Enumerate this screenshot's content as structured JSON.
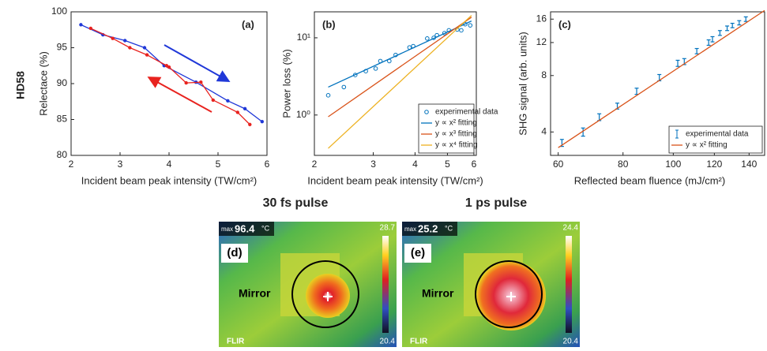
{
  "side_label": "HD58",
  "chart_data": [
    {
      "type": "line",
      "panel_label": "(a)",
      "xlabel": "Incident beam peak intensity (TW/cm²)",
      "ylabel": "Relectace (%)",
      "xlim": [
        2,
        6
      ],
      "ylim": [
        80,
        100
      ],
      "xticks": [
        2,
        3,
        4,
        5,
        6
      ],
      "yticks": [
        80,
        85,
        90,
        95,
        100
      ],
      "series": [
        {
          "color": "#2038d8",
          "x": [
            2.2,
            2.65,
            3.1,
            3.5,
            3.9,
            4.55,
            5.2,
            5.55,
            5.9
          ],
          "values": [
            98.2,
            96.8,
            96.0,
            95.0,
            92.5,
            90.2,
            87.6,
            86.5,
            84.7
          ]
        },
        {
          "color": "#e8231f",
          "x": [
            2.4,
            2.85,
            3.2,
            3.55,
            3.95,
            4.0,
            4.35,
            4.65,
            4.9,
            5.4,
            5.65
          ],
          "values": [
            97.7,
            96.3,
            95.0,
            94.0,
            92.5,
            92.3,
            90.1,
            90.2,
            87.7,
            86.0,
            84.3
          ]
        }
      ]
    },
    {
      "type": "scatter",
      "panel_label": "(b)",
      "xlabel": "Incident beam peak intensity (TW/cm²)",
      "ylabel": "Power loss (%)",
      "xscale": "log",
      "yscale": "log",
      "xlim": [
        2,
        6.1
      ],
      "ylim": [
        0.3,
        21.7
      ],
      "xticks": [
        2,
        3,
        4,
        5,
        6
      ],
      "yticks": [
        {
          "value": 1,
          "label": "10⁰"
        },
        {
          "value": 10,
          "label": "10¹"
        }
      ],
      "legend": "lower right",
      "series": [
        {
          "name": "experimental data",
          "kind": "scatter",
          "color": "#0072bd",
          "x": [
            2.2,
            2.45,
            2.65,
            2.85,
            3.05,
            3.15,
            3.35,
            3.5,
            3.85,
            3.95,
            4.35,
            4.55,
            4.65,
            4.9,
            5.05,
            5.35,
            5.5,
            5.65,
            5.85
          ],
          "values": [
            1.8,
            2.3,
            3.3,
            3.7,
            4.0,
            5.0,
            5.0,
            6.0,
            7.5,
            7.8,
            9.8,
            10.0,
            10.8,
            11.5,
            12.5,
            12.8,
            12.5,
            15.0,
            14.5
          ]
        },
        {
          "name": "y ∝ x² fitting",
          "kind": "line",
          "color": "#0072bd",
          "x": [
            2.2,
            5.9
          ],
          "values": [
            2.3,
            16.5
          ]
        },
        {
          "name": "y ∝ x³ fitting",
          "kind": "line",
          "color": "#d95319",
          "x": [
            2.2,
            5.9
          ],
          "values": [
            0.95,
            18.5
          ]
        },
        {
          "name": "y ∝ x⁴ fitting",
          "kind": "line",
          "color": "#edb120",
          "x": [
            2.2,
            5.9
          ],
          "values": [
            0.37,
            19.5
          ]
        }
      ]
    },
    {
      "type": "errorbar",
      "panel_label": "(c)",
      "xlabel": "Reflected beam fluence (mJ/cm²)",
      "ylabel": "SHG signal (arb. units)",
      "xscale": "log",
      "yscale": "log",
      "xlim": [
        58,
        150
      ],
      "ylim": [
        3,
        17.5
      ],
      "xticks": [
        60,
        80,
        100,
        120,
        140
      ],
      "yticks": [
        4,
        8,
        12,
        16
      ],
      "legend": "lower right",
      "series": [
        {
          "name": "experimental data",
          "kind": "errorbar",
          "color": "#0072bd",
          "x": [
            61,
            67,
            72,
            78,
            85,
            94,
            102,
            105,
            111,
            117,
            119,
            123,
            127,
            130,
            134,
            138
          ],
          "values": [
            3.5,
            4.0,
            4.8,
            5.5,
            6.6,
            7.8,
            9.3,
            9.5,
            10.8,
            12.0,
            12.5,
            13.5,
            14.3,
            14.8,
            15.3,
            16.0
          ],
          "errors": [
            0.15,
            0.2,
            0.2,
            0.2,
            0.25,
            0.3,
            0.35,
            0.35,
            0.35,
            0.4,
            0.4,
            0.4,
            0.4,
            0.4,
            0.4,
            0.45
          ]
        },
        {
          "name": "y ∝ x² fitting",
          "kind": "line",
          "color": "#d95319",
          "x": [
            60,
            150
          ],
          "values": [
            3.3,
            17.8
          ]
        }
      ]
    }
  ],
  "images": [
    {
      "heading": "30 fs pulse",
      "label": "(d)",
      "max_prefix": "max",
      "max_value": "96.4",
      "unit": "°C",
      "scale_top": "28.7",
      "scale_bottom": "20.4",
      "object": "Mirror",
      "brand": "FLIR"
    },
    {
      "heading": "1 ps pulse",
      "label": "(e)",
      "max_prefix": "max",
      "max_value": "25.2",
      "unit": "°C",
      "scale_top": "24.4",
      "scale_bottom": "20.4",
      "object": "Mirror",
      "brand": "FLIR"
    }
  ]
}
